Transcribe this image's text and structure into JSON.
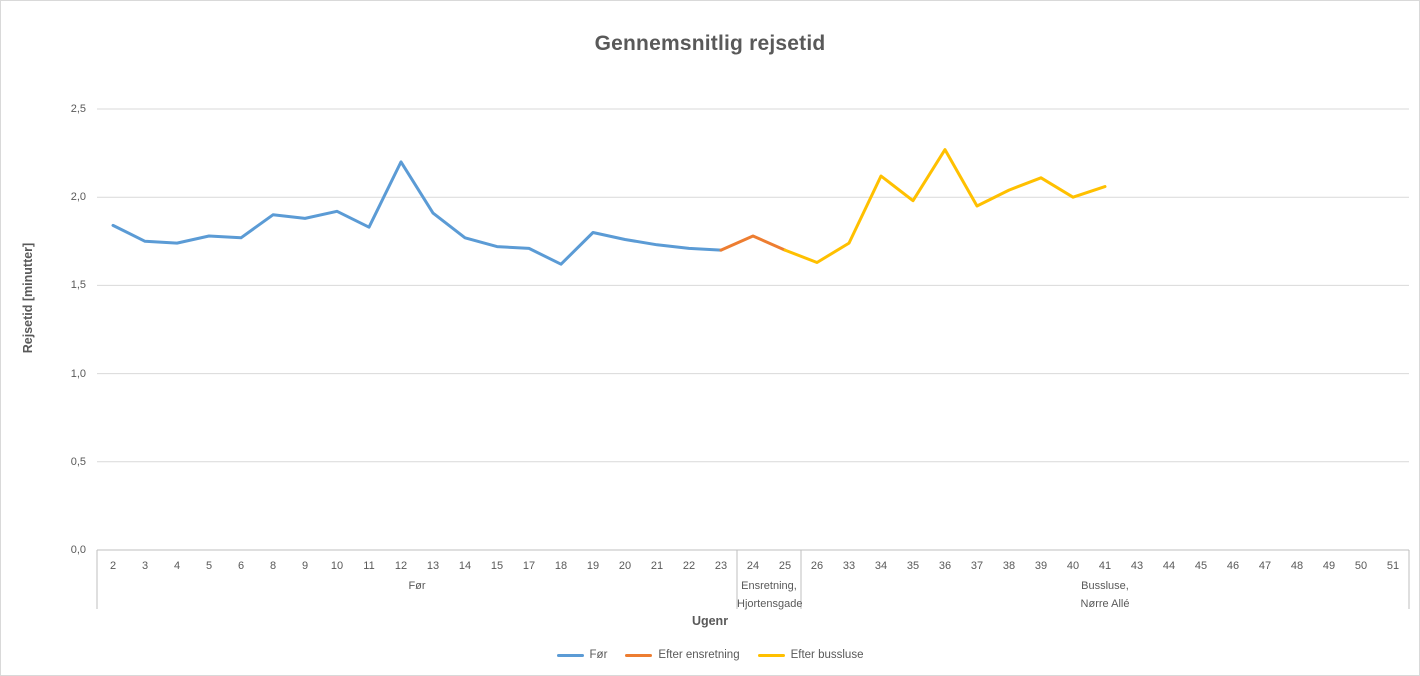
{
  "title": "Gennemsnitlig rejsetid",
  "colors": {
    "series_blue": "#5B9BD5",
    "series_orange": "#ED7D31",
    "series_yellow": "#FFC000",
    "text_gray": "#595959",
    "gridline": "#D9D9D9",
    "axis_line": "#BFBFBF"
  },
  "chart_data": {
    "type": "line",
    "title": "Gennemsnitlig rejsetid",
    "xlabel": "Ugenr",
    "ylabel": "Rejsetid [minutter]",
    "ylim": [
      0,
      2.5
    ],
    "y_tick_step": 0.5,
    "y_tick_labels": [
      "0,0",
      "0,5",
      "1,0",
      "1,5",
      "2,0",
      "2,5"
    ],
    "grid": true,
    "legend_position": "bottom",
    "categories": [
      "2",
      "3",
      "4",
      "5",
      "6",
      "8",
      "9",
      "10",
      "11",
      "12",
      "13",
      "14",
      "15",
      "17",
      "18",
      "19",
      "20",
      "21",
      "22",
      "23",
      "24",
      "25",
      "26",
      "33",
      "34",
      "35",
      "36",
      "37",
      "38",
      "39",
      "40",
      "41",
      "43",
      "44",
      "45",
      "46",
      "47",
      "48",
      "49",
      "50",
      "51"
    ],
    "series": [
      {
        "name": "Før",
        "color": "#5B9BD5",
        "points": [
          [
            "2",
            1.84
          ],
          [
            "3",
            1.75
          ],
          [
            "4",
            1.74
          ],
          [
            "5",
            1.78
          ],
          [
            "6",
            1.77
          ],
          [
            "8",
            1.9
          ],
          [
            "9",
            1.88
          ],
          [
            "10",
            1.92
          ],
          [
            "11",
            1.83
          ],
          [
            "12",
            2.2
          ],
          [
            "13",
            1.91
          ],
          [
            "14",
            1.77
          ],
          [
            "15",
            1.72
          ],
          [
            "17",
            1.71
          ],
          [
            "18",
            1.62
          ],
          [
            "19",
            1.8
          ],
          [
            "20",
            1.76
          ],
          [
            "21",
            1.73
          ],
          [
            "22",
            1.71
          ],
          [
            "23",
            1.7
          ]
        ]
      },
      {
        "name": "Efter ensretning",
        "color": "#ED7D31",
        "points": [
          [
            "23",
            1.7
          ],
          [
            "24",
            1.78
          ],
          [
            "25",
            1.7
          ]
        ]
      },
      {
        "name": "Efter bussluse",
        "color": "#FFC000",
        "points": [
          [
            "25",
            1.7
          ],
          [
            "26",
            1.63
          ],
          [
            "33",
            1.74
          ],
          [
            "34",
            2.12
          ],
          [
            "35",
            1.98
          ],
          [
            "36",
            2.27
          ],
          [
            "37",
            1.95
          ],
          [
            "38",
            2.04
          ],
          [
            "39",
            2.11
          ],
          [
            "40",
            2.0
          ],
          [
            "41",
            2.06
          ]
        ]
      }
    ],
    "x_groups": [
      {
        "label_lines": [
          "Før"
        ],
        "from": "2",
        "to": "23"
      },
      {
        "label_lines": [
          "Ensretning,",
          "Hjortensgade"
        ],
        "from": "24",
        "to": "25"
      },
      {
        "label_lines": [
          "Bussluse,",
          "Nørre Allé"
        ],
        "from": "26",
        "to": "51"
      }
    ]
  }
}
